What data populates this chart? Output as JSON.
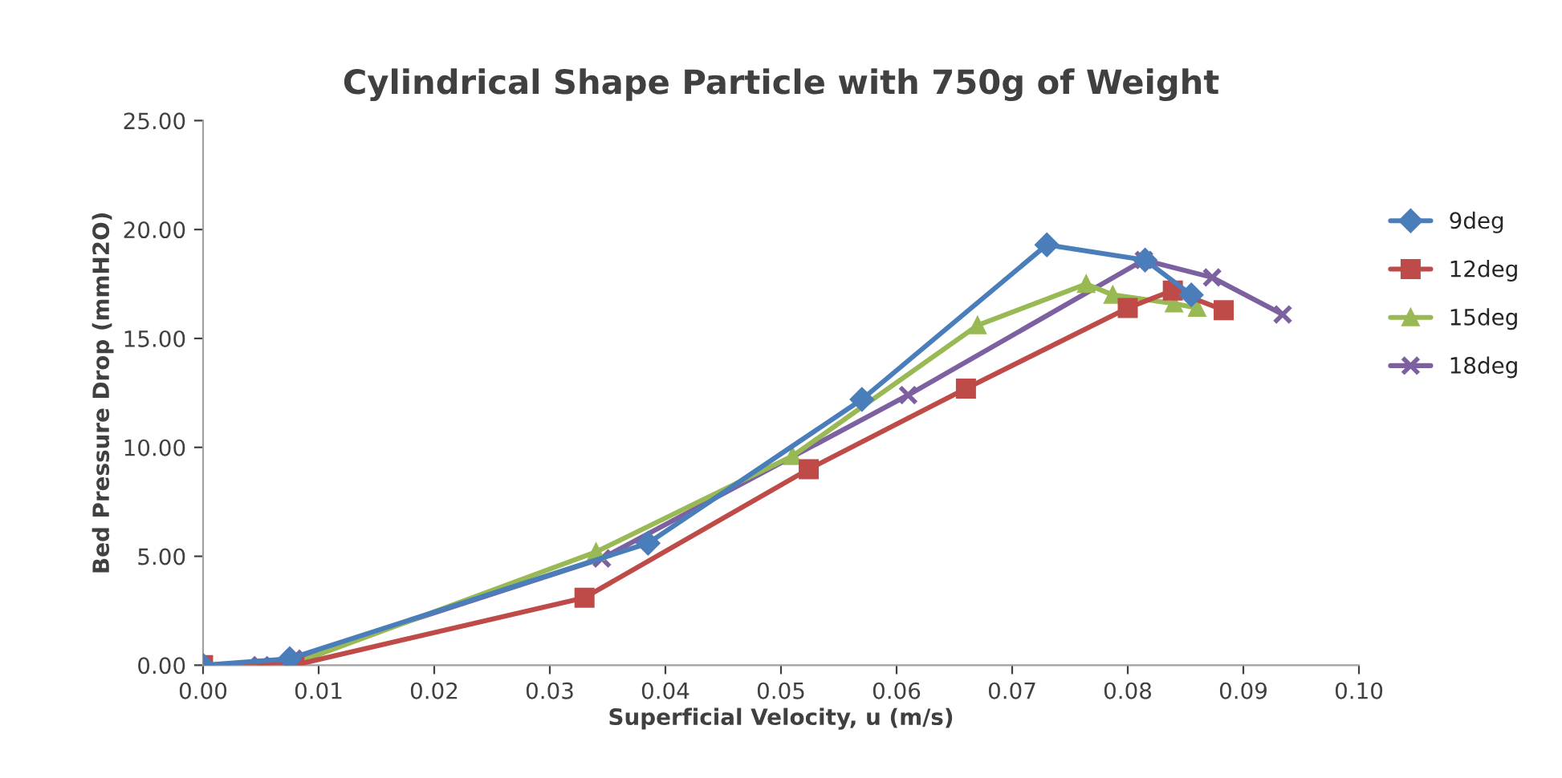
{
  "chart_data": {
    "type": "line",
    "title": "Cylindrical Shape Particle with 750g of Weight",
    "xlabel": "Superficial Velocity, u (m/s)",
    "ylabel": "Bed Pressure Drop (mmH2O)",
    "xlim": [
      0,
      0.1
    ],
    "ylim": [
      0,
      25
    ],
    "xticks": [
      {
        "value": 0,
        "label": "0.00"
      },
      {
        "value": 0.01,
        "label": "0.01"
      },
      {
        "value": 0.02,
        "label": "0.02"
      },
      {
        "value": 0.03,
        "label": "0.03"
      },
      {
        "value": 0.04,
        "label": "0.04"
      },
      {
        "value": 0.05,
        "label": "0.05"
      },
      {
        "value": 0.06,
        "label": "0.06"
      },
      {
        "value": 0.07,
        "label": "0.07"
      },
      {
        "value": 0.08,
        "label": "0.08"
      },
      {
        "value": 0.09,
        "label": "0.09"
      },
      {
        "value": 0.1,
        "label": "0.10"
      }
    ],
    "yticks": [
      {
        "value": 0,
        "label": "0.00"
      },
      {
        "value": 5,
        "label": "5.00"
      },
      {
        "value": 10,
        "label": "10.00"
      },
      {
        "value": 15,
        "label": "15.00"
      },
      {
        "value": 20,
        "label": "20.00"
      },
      {
        "value": 25,
        "label": "25.00"
      }
    ],
    "grid": false,
    "legend": "right",
    "line_style": "solid",
    "series": [
      {
        "name": "9deg",
        "color": "#4a7ebb",
        "marker": "diamond",
        "x": [
          0,
          0.0075,
          0.0385,
          0.057,
          0.073,
          0.0815,
          0.0855
        ],
        "values": [
          0,
          0.3,
          5.6,
          12.2,
          19.3,
          18.6,
          17.0
        ]
      },
      {
        "name": "12deg",
        "color": "#be4b48",
        "marker": "square",
        "x": [
          0,
          0.0079,
          0.033,
          0.0524,
          0.066,
          0.08,
          0.0839,
          0.0883
        ],
        "values": [
          0,
          0,
          3.1,
          9.0,
          12.7,
          16.4,
          17.2,
          16.3
        ]
      },
      {
        "name": "15deg",
        "color": "#98b954",
        "marker": "triangle",
        "x": [
          0.0075,
          0.034,
          0.051,
          0.067,
          0.0764,
          0.0787,
          0.084,
          0.086
        ],
        "values": [
          0,
          5.2,
          9.6,
          15.6,
          17.5,
          17.0,
          16.6,
          16.4
        ]
      },
      {
        "name": "18deg",
        "color": "#7d60a0",
        "marker": "cross",
        "x": [
          0.005,
          0.0078,
          0.0345,
          0.061,
          0.0814,
          0.0873,
          0.0934
        ],
        "values": [
          0,
          0.3,
          4.9,
          12.4,
          18.6,
          17.8,
          16.1
        ]
      }
    ]
  }
}
